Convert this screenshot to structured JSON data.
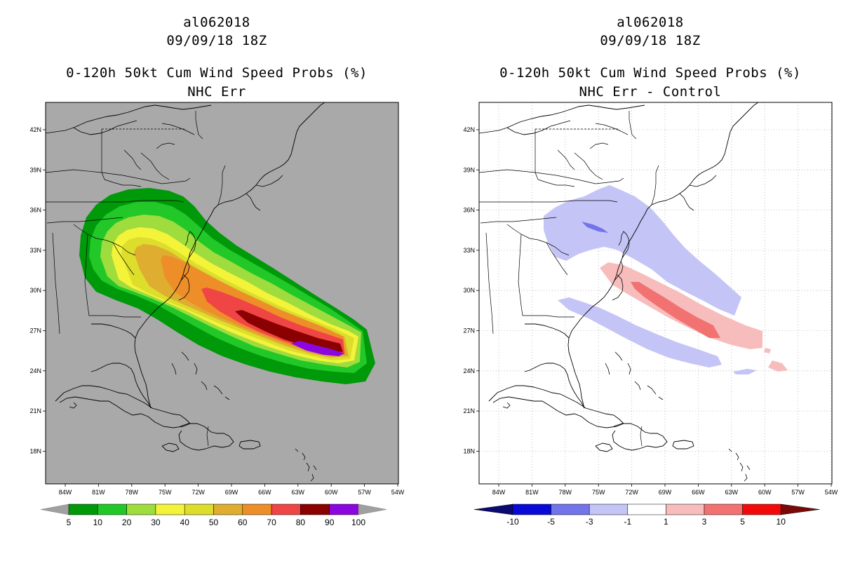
{
  "left_panel": {
    "storm_id": "al062018",
    "datetime": "09/09/18 18Z",
    "product": "0-120h 50kt Cum Wind Speed Probs (%)",
    "subtitle": "NHC Err",
    "background_color": "#a9a9a9",
    "colorbar": {
      "labels": [
        "5",
        "10",
        "20",
        "30",
        "40",
        "50",
        "60",
        "70",
        "80",
        "90",
        "100"
      ],
      "colors": [
        "#00990a",
        "#22c827",
        "#9fdc3d",
        "#f3f33a",
        "#dddd2c",
        "#dfad30",
        "#ed8e29",
        "#f04545",
        "#8b0000",
        "#8a07e0"
      ],
      "end_color": "#a0a0a0"
    },
    "contour_levels": [
      5,
      10,
      20,
      30,
      40,
      50,
      60,
      70,
      80,
      90
    ],
    "contour_colors": [
      "#00990a",
      "#22c827",
      "#9fdc3d",
      "#f3f33a",
      "#dddd2c",
      "#dfad30",
      "#ed8e29",
      "#f04545",
      "#8b0000",
      "#8a07e0"
    ]
  },
  "right_panel": {
    "storm_id": "al062018",
    "datetime": "09/09/18 18Z",
    "product": "0-120h 50kt Cum Wind Speed Probs (%)",
    "subtitle": "NHC Err - Control",
    "background_color": "#ffffff",
    "colorbar": {
      "labels": [
        "-10",
        "-5",
        "-3",
        "-1",
        "1",
        "3",
        "5",
        "10"
      ],
      "colors": [
        "#0a0ad8",
        "#7373ea",
        "#c4c4f6",
        "#ffffff",
        "#f7bdbd",
        "#f27272",
        "#f20a0a"
      ],
      "low_end_color": "#0a0a70",
      "high_end_color": "#7a0a0a"
    }
  },
  "axes": {
    "x_ticks": [
      "84W",
      "81W",
      "78W",
      "75W",
      "72W",
      "69W",
      "66W",
      "63W",
      "60W",
      "57W",
      "54W"
    ],
    "y_ticks": [
      "42N",
      "39N",
      "36N",
      "33N",
      "30N",
      "27N",
      "24N",
      "21N",
      "18N"
    ]
  }
}
